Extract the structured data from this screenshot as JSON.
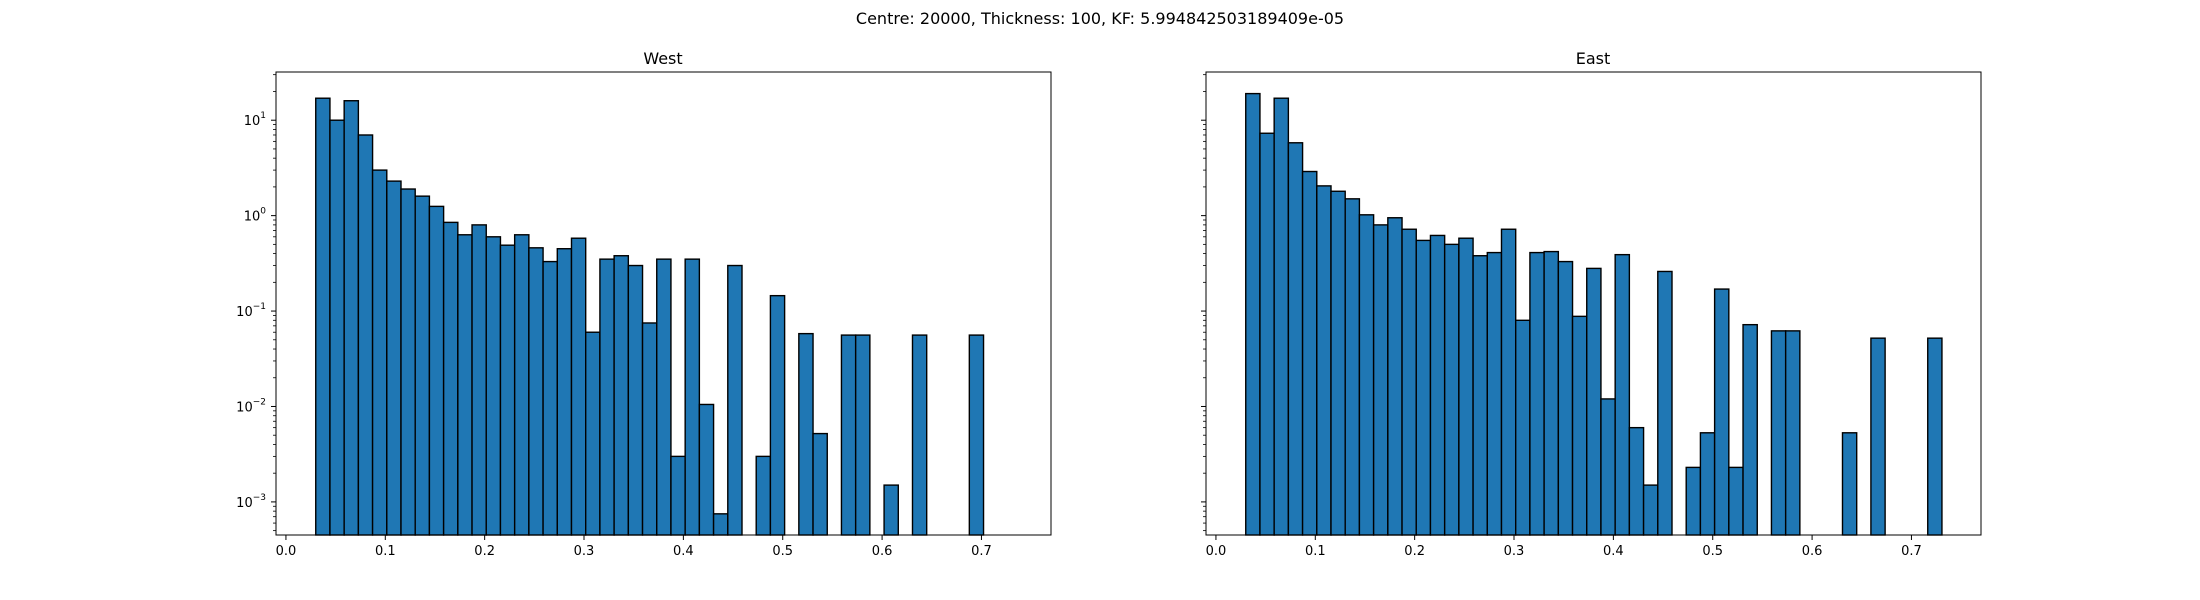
{
  "figure": {
    "suptitle": "Centre: 20000, Thickness: 100, KF: 5.994842503189409e-05"
  },
  "chart_data": [
    {
      "type": "bar",
      "title": "West",
      "xlabel": "",
      "ylabel": "",
      "yscale": "log",
      "xlim": [
        -0.01,
        0.77
      ],
      "ylim": [
        0.00045,
        32
      ],
      "bin_width": 0.0143,
      "bar_color": "#1f77b4",
      "edge_color": "#000000",
      "xticks": [
        "0.0",
        "0.1",
        "0.2",
        "0.3",
        "0.4",
        "0.5",
        "0.6",
        "0.7"
      ],
      "yticks": [
        {
          "value": 10,
          "base": "10",
          "exp": "1"
        },
        {
          "value": 1,
          "base": "10",
          "exp": "0"
        },
        {
          "value": 0.1,
          "base": "10",
          "exp": "−1"
        },
        {
          "value": 0.01,
          "base": "10",
          "exp": "−2"
        },
        {
          "value": 0.001,
          "base": "10",
          "exp": "−3"
        }
      ],
      "bins": [
        {
          "x": 0.03,
          "y": 17
        },
        {
          "x": 0.0443,
          "y": 10
        },
        {
          "x": 0.0586,
          "y": 16
        },
        {
          "x": 0.0729,
          "y": 7
        },
        {
          "x": 0.0872,
          "y": 3
        },
        {
          "x": 0.1015,
          "y": 2.3
        },
        {
          "x": 0.1158,
          "y": 1.9
        },
        {
          "x": 0.1301,
          "y": 1.6
        },
        {
          "x": 0.1444,
          "y": 1.25
        },
        {
          "x": 0.1587,
          "y": 0.85
        },
        {
          "x": 0.173,
          "y": 0.63
        },
        {
          "x": 0.1873,
          "y": 0.8
        },
        {
          "x": 0.2016,
          "y": 0.6
        },
        {
          "x": 0.2159,
          "y": 0.49
        },
        {
          "x": 0.2302,
          "y": 0.63
        },
        {
          "x": 0.2445,
          "y": 0.46
        },
        {
          "x": 0.2588,
          "y": 0.33
        },
        {
          "x": 0.2731,
          "y": 0.45
        },
        {
          "x": 0.2874,
          "y": 0.58
        },
        {
          "x": 0.3017,
          "y": 0.06
        },
        {
          "x": 0.316,
          "y": 0.35
        },
        {
          "x": 0.3303,
          "y": 0.38
        },
        {
          "x": 0.3446,
          "y": 0.3
        },
        {
          "x": 0.3589,
          "y": 0.075
        },
        {
          "x": 0.3732,
          "y": 0.35
        },
        {
          "x": 0.3875,
          "y": 0.003
        },
        {
          "x": 0.4018,
          "y": 0.35
        },
        {
          "x": 0.4161,
          "y": 0.0105
        },
        {
          "x": 0.4304,
          "y": 0.00075
        },
        {
          "x": 0.4447,
          "y": 0.3
        },
        {
          "x": 0.4733,
          "y": 0.003
        },
        {
          "x": 0.4876,
          "y": 0.145
        },
        {
          "x": 0.5162,
          "y": 0.058
        },
        {
          "x": 0.5305,
          "y": 0.0052
        },
        {
          "x": 0.5591,
          "y": 0.056
        },
        {
          "x": 0.5734,
          "y": 0.056
        },
        {
          "x": 0.602,
          "y": 0.0015
        },
        {
          "x": 0.6306,
          "y": 0.056
        },
        {
          "x": 0.6878,
          "y": 0.056
        }
      ]
    },
    {
      "type": "bar",
      "title": "East",
      "xlabel": "",
      "ylabel": "",
      "yscale": "log",
      "xlim": [
        -0.01,
        0.77
      ],
      "ylim": [
        0.00045,
        32
      ],
      "bin_width": 0.0143,
      "bar_color": "#1f77b4",
      "edge_color": "#000000",
      "xticks": [
        "0.0",
        "0.1",
        "0.2",
        "0.3",
        "0.4",
        "0.5",
        "0.6",
        "0.7"
      ],
      "bins": [
        {
          "x": 0.03,
          "y": 19
        },
        {
          "x": 0.0443,
          "y": 7.3
        },
        {
          "x": 0.0586,
          "y": 17
        },
        {
          "x": 0.0729,
          "y": 5.8
        },
        {
          "x": 0.0872,
          "y": 2.9
        },
        {
          "x": 0.1015,
          "y": 2.05
        },
        {
          "x": 0.1158,
          "y": 1.8
        },
        {
          "x": 0.1301,
          "y": 1.5
        },
        {
          "x": 0.1444,
          "y": 1.02
        },
        {
          "x": 0.1587,
          "y": 0.8
        },
        {
          "x": 0.173,
          "y": 0.95
        },
        {
          "x": 0.1873,
          "y": 0.72
        },
        {
          "x": 0.2016,
          "y": 0.55
        },
        {
          "x": 0.2159,
          "y": 0.62
        },
        {
          "x": 0.2302,
          "y": 0.5
        },
        {
          "x": 0.2445,
          "y": 0.58
        },
        {
          "x": 0.2588,
          "y": 0.38
        },
        {
          "x": 0.2731,
          "y": 0.41
        },
        {
          "x": 0.2874,
          "y": 0.72
        },
        {
          "x": 0.3017,
          "y": 0.08
        },
        {
          "x": 0.316,
          "y": 0.41
        },
        {
          "x": 0.3303,
          "y": 0.42
        },
        {
          "x": 0.3446,
          "y": 0.33
        },
        {
          "x": 0.3589,
          "y": 0.088
        },
        {
          "x": 0.3732,
          "y": 0.28
        },
        {
          "x": 0.3875,
          "y": 0.012
        },
        {
          "x": 0.4018,
          "y": 0.39
        },
        {
          "x": 0.4161,
          "y": 0.006
        },
        {
          "x": 0.4304,
          "y": 0.0015
        },
        {
          "x": 0.4447,
          "y": 0.26
        },
        {
          "x": 0.4733,
          "y": 0.0023
        },
        {
          "x": 0.4876,
          "y": 0.0053
        },
        {
          "x": 0.5019,
          "y": 0.17
        },
        {
          "x": 0.5162,
          "y": 0.0023
        },
        {
          "x": 0.5305,
          "y": 0.072
        },
        {
          "x": 0.5591,
          "y": 0.062
        },
        {
          "x": 0.5734,
          "y": 0.062
        },
        {
          "x": 0.6306,
          "y": 0.0053
        },
        {
          "x": 0.6592,
          "y": 0.052
        },
        {
          "x": 0.7164,
          "y": 0.052
        }
      ]
    }
  ]
}
